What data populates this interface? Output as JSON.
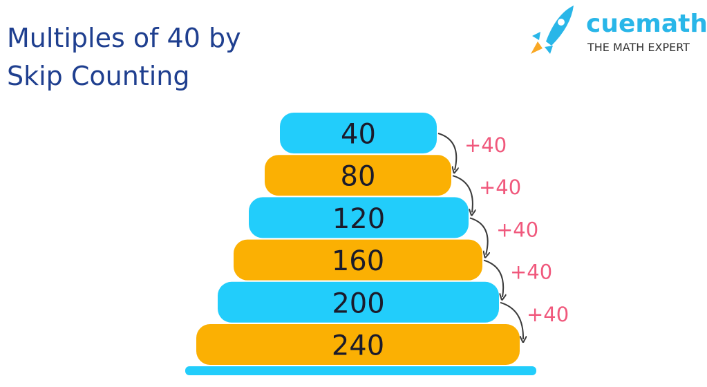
{
  "header": {
    "title_lines": [
      "Multiples of 40 by",
      "Skip Counting"
    ]
  },
  "logo": {
    "brand": "cuemath",
    "tagline": "THE MATH EXPERT"
  },
  "blocks": [
    "40",
    "80",
    "120",
    "160",
    "200",
    "240"
  ],
  "steps": [
    "+40",
    "+40",
    "+40",
    "+40",
    "+40"
  ]
}
